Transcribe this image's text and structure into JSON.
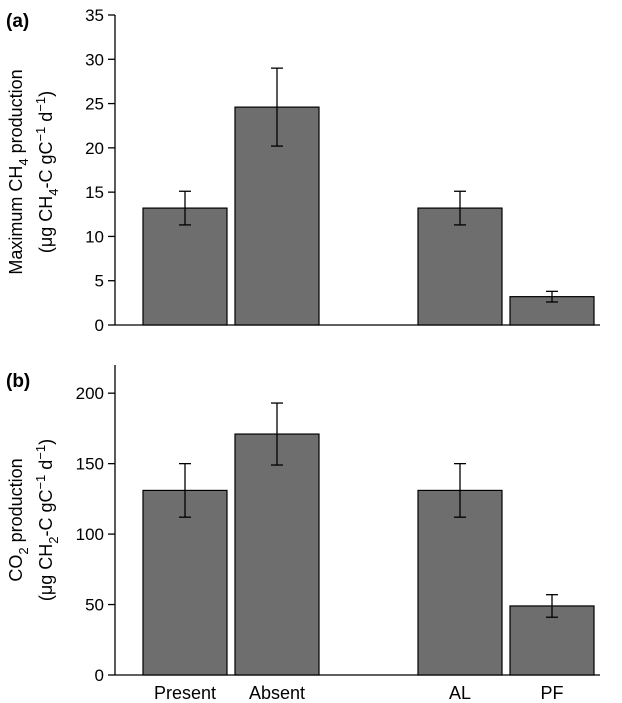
{
  "chart_data": [
    {
      "type": "bar",
      "panel_label": "(a)",
      "categories": [
        "Present",
        "Absent",
        "AL",
        "PF"
      ],
      "values": [
        13.2,
        24.6,
        13.2,
        3.2
      ],
      "errors": [
        1.9,
        4.4,
        1.9,
        0.6
      ],
      "ylim": [
        0,
        35
      ],
      "yticks": [
        0,
        5,
        10,
        15,
        20,
        25,
        30,
        35
      ],
      "ylabel_line1_pre": "Maximum CH",
      "ylabel_line1_sub": "4",
      "ylabel_line1_post": " production",
      "ylabel_line2_pre": "(μg CH",
      "ylabel_line2_sub": "4",
      "ylabel_line2_mid": "-C gC",
      "ylabel_line2_sup1": "−1",
      "ylabel_line2_mid2": " d",
      "ylabel_line2_sup2": "−1",
      "ylabel_line2_post": ")",
      "xlabel": "",
      "grid": false
    },
    {
      "type": "bar",
      "panel_label": "(b)",
      "categories": [
        "Present",
        "Absent",
        "AL",
        "PF"
      ],
      "values": [
        131,
        171,
        131,
        49
      ],
      "errors": [
        19,
        22,
        19,
        8
      ],
      "ylim": [
        0,
        220
      ],
      "yticks": [
        0,
        50,
        100,
        150,
        200
      ],
      "ylabel_line1_pre": "CO",
      "ylabel_line1_sub": "2",
      "ylabel_line1_post": " production",
      "ylabel_line2_pre": "(μg CH",
      "ylabel_line2_sub": "2",
      "ylabel_line2_mid": "-C gC",
      "ylabel_line2_sup1": "−1",
      "ylabel_line2_mid2": " d",
      "ylabel_line2_sup2": "−1",
      "ylabel_line2_post": ")",
      "xlabel": "",
      "grid": false
    }
  ]
}
